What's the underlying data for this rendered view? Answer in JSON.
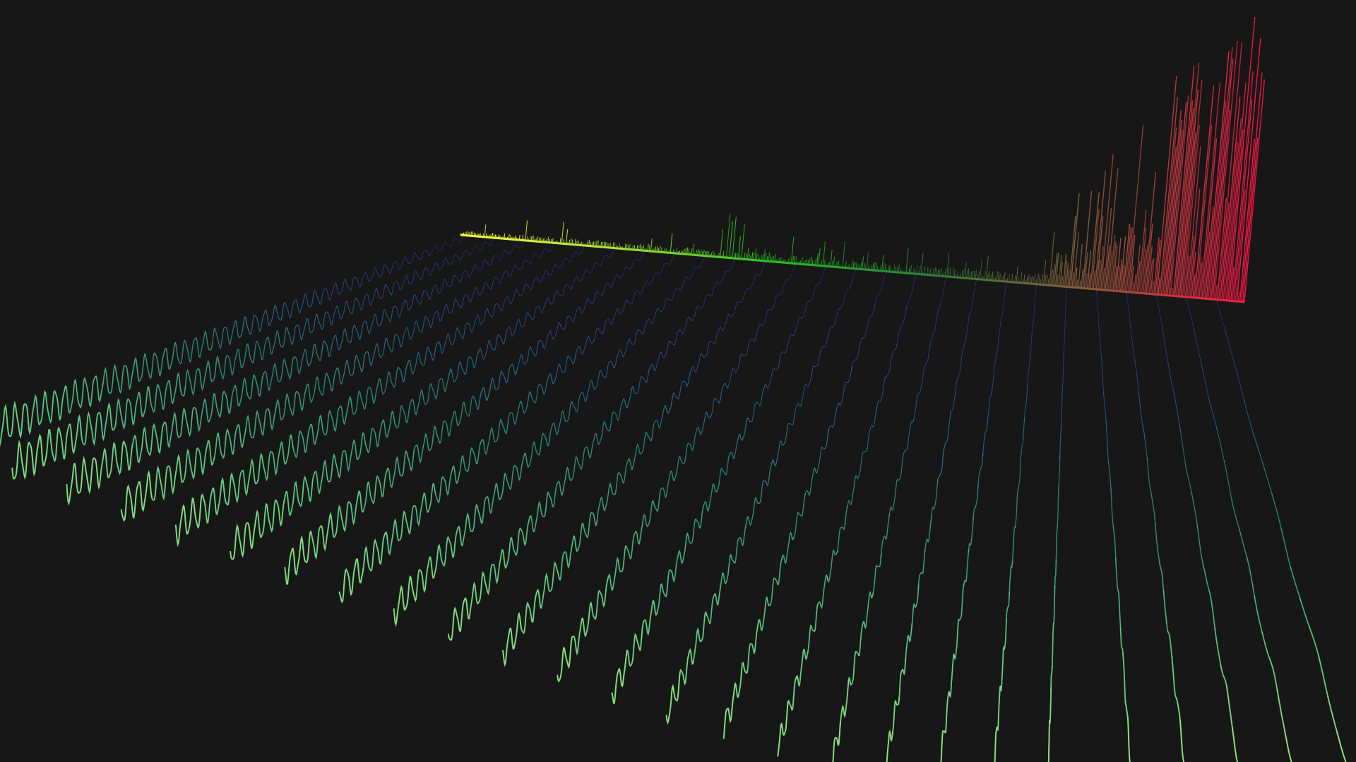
{
  "scene": {
    "background": "#171717",
    "spectrum_gradient": [
      "#ffff44",
      "#a8e032",
      "#22c022",
      "#2e7d3a",
      "#8a5a3a",
      "#ff1744"
    ],
    "waveform_gradient": [
      "#3b2fb8",
      "#2f5fb0",
      "#2fa38a",
      "#5fd68a",
      "#9ae87a"
    ],
    "waveform_count": 26,
    "cycles_per_waveform_front": 48,
    "cycles_per_waveform_back": 3,
    "spectrum_bar_count": 520,
    "frequency_scale": "log"
  }
}
